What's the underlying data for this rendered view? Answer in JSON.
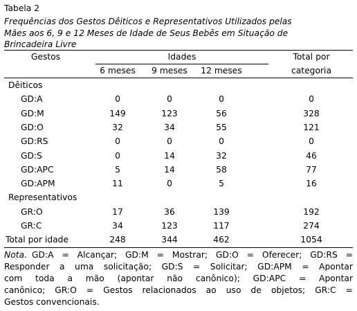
{
  "title": "Tabela 2",
  "caption": [
    "Frequências dos Gestos Dêiticos e Representativos Utilizados pelas",
    "Mães aos 6, 9 e 12 Meses de Idade de Seus Bebês em Situação de",
    "Brincadeira Livre"
  ],
  "table": {
    "header": {
      "gestos": "Gestos",
      "group": "Idades",
      "subcols": [
        "6 meses",
        "9 meses",
        "12 meses"
      ],
      "total": [
        "Total por",
        "categoria"
      ]
    },
    "groups": [
      {
        "name": "Dêiticos",
        "rows": [
          {
            "label": "GD:A",
            "values": [
              0,
              0,
              0,
              0
            ]
          },
          {
            "label": "GD:M",
            "values": [
              149,
              123,
              56,
              328
            ]
          },
          {
            "label": "GD:O",
            "values": [
              32,
              34,
              55,
              121
            ]
          },
          {
            "label": "GD:RS",
            "values": [
              0,
              0,
              0,
              0
            ]
          },
          {
            "label": "GD:S",
            "values": [
              0,
              14,
              32,
              46
            ]
          },
          {
            "label": "GD:APC",
            "values": [
              5,
              14,
              58,
              77
            ]
          },
          {
            "label": "GD:APM",
            "values": [
              11,
              0,
              5,
              16
            ]
          }
        ]
      },
      {
        "name": "Representativos",
        "rows": [
          {
            "label": "GR:O",
            "values": [
              17,
              36,
              139,
              192
            ]
          },
          {
            "label": "GR:C",
            "values": [
              34,
              123,
              117,
              274
            ]
          }
        ]
      }
    ],
    "total": {
      "label": "Total por idade",
      "values": [
        248,
        344,
        462,
        1054
      ]
    }
  },
  "note": {
    "label": "Nota.",
    "lines": [
      "GD:A = Alcançar; GD:M = Mostrar; GD:O = Oferecer; GD:RS =",
      "Responder a uma solicitação; GD:S = Solicitar; GD:APM = Apontar",
      "com toda a mão (apontar não canônico); GD:APC = Apontar",
      "canônico; GR:O = Gestos relacionados ao uso de objetos; GR:C =",
      "Gestos convencionais."
    ]
  }
}
